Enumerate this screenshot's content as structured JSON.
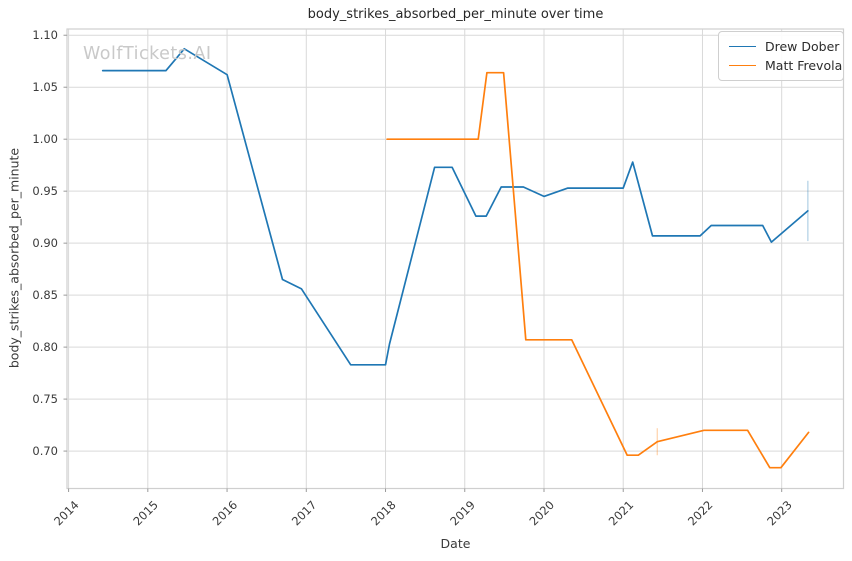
{
  "watermark": "WolfTickets.AI",
  "chart_data": {
    "type": "line",
    "title": "body_strikes_absorbed_per_minute over time",
    "xlabel": "Date",
    "ylabel": "body_strikes_absorbed_per_minute",
    "xlim": [
      2013.98,
      2023.78
    ],
    "ylim": [
      0.664,
      1.106
    ],
    "x_ticks": [
      2014,
      2015,
      2016,
      2017,
      2018,
      2019,
      2020,
      2021,
      2022,
      2023
    ],
    "y_ticks": [
      0.7,
      0.75,
      0.8,
      0.85,
      0.9,
      0.95,
      1.0,
      1.05,
      1.1
    ],
    "grid": true,
    "legend_position": "upper-right",
    "series": [
      {
        "name": "Drew Dober",
        "color": "#1f77b4",
        "points": [
          [
            2014.43,
            1.066
          ],
          [
            2015.23,
            1.066
          ],
          [
            2015.46,
            1.087
          ],
          [
            2016.0,
            1.062
          ],
          [
            2016.7,
            0.865
          ],
          [
            2016.94,
            0.856
          ],
          [
            2017.56,
            0.783
          ],
          [
            2018.0,
            0.783
          ],
          [
            2018.05,
            0.803
          ],
          [
            2018.62,
            0.973
          ],
          [
            2018.84,
            0.973
          ],
          [
            2019.14,
            0.926
          ],
          [
            2019.27,
            0.926
          ],
          [
            2019.46,
            0.954
          ],
          [
            2019.74,
            0.954
          ],
          [
            2020.0,
            0.945
          ],
          [
            2020.3,
            0.953
          ],
          [
            2021.0,
            0.953
          ],
          [
            2021.12,
            0.978
          ],
          [
            2021.37,
            0.907
          ],
          [
            2021.97,
            0.907
          ],
          [
            2022.11,
            0.917
          ],
          [
            2022.76,
            0.917
          ],
          [
            2022.87,
            0.901
          ],
          [
            2023.33,
            0.931
          ]
        ]
      },
      {
        "name": "Matt Frevola",
        "color": "#ff7f0e",
        "points": [
          [
            2018.02,
            1.0
          ],
          [
            2019.17,
            1.0
          ],
          [
            2019.28,
            1.064
          ],
          [
            2019.49,
            1.064
          ],
          [
            2019.77,
            0.807
          ],
          [
            2020.35,
            0.807
          ],
          [
            2021.05,
            0.696
          ],
          [
            2021.19,
            0.696
          ],
          [
            2021.43,
            0.709
          ],
          [
            2022.02,
            0.72
          ],
          [
            2022.57,
            0.72
          ],
          [
            2022.85,
            0.684
          ],
          [
            2022.99,
            0.684
          ],
          [
            2023.34,
            0.718
          ]
        ]
      }
    ],
    "error_bars": [
      {
        "series": "Drew Dober",
        "x": 2023.33,
        "y_low": 0.902,
        "y_high": 0.96,
        "color": "#1f77b4"
      },
      {
        "series": "Matt Frevola",
        "x": 2021.43,
        "y_low": 0.696,
        "y_high": 0.722,
        "color": "#ff7f0e"
      }
    ],
    "style": {
      "grid_color": "#d9d9d9",
      "spine_color": "#cfcfcf",
      "tick_color": "#9a9a9a",
      "tick_label_color": "#3b3b3b"
    }
  }
}
